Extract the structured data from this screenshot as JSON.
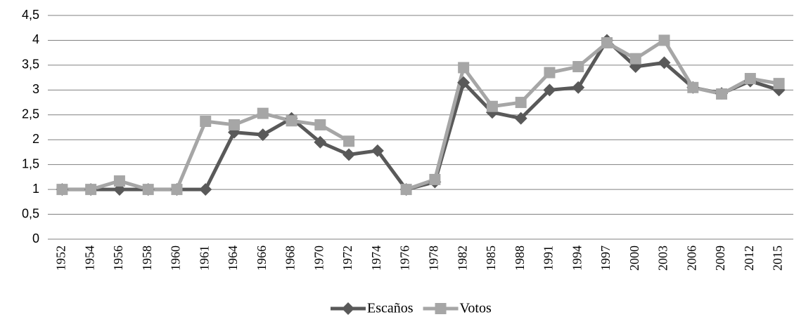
{
  "chart_data": {
    "type": "line",
    "categories": [
      "1952",
      "1954",
      "1956",
      "1958",
      "1960",
      "1961",
      "1964",
      "1966",
      "1968",
      "1970",
      "1972",
      "1974",
      "1976",
      "1978",
      "1982",
      "1985",
      "1988",
      "1991",
      "1994",
      "1997",
      "2000",
      "2003",
      "2006",
      "2009",
      "2012",
      "2015"
    ],
    "series": [
      {
        "name": "Escaños",
        "color": "#595959",
        "marker": "diamond",
        "values": [
          1,
          1,
          1,
          1,
          1,
          1,
          2.15,
          2.1,
          2.43,
          1.95,
          1.7,
          1.78,
          1,
          1.15,
          3.15,
          2.55,
          2.43,
          3.0,
          3.05,
          4.0,
          3.47,
          3.55,
          3.05,
          2.93,
          3.18,
          3.0
        ]
      },
      {
        "name": "Votos",
        "color": "#a6a6a6",
        "marker": "square",
        "values": [
          1,
          1,
          1.17,
          1,
          1,
          2.37,
          2.3,
          2.53,
          2.38,
          2.3,
          1.97,
          null,
          1,
          1.2,
          3.45,
          2.67,
          2.75,
          3.35,
          3.47,
          3.95,
          3.63,
          4.0,
          3.05,
          2.92,
          3.23,
          3.13
        ]
      }
    ],
    "ylim": [
      0,
      4.5
    ],
    "yticks": [
      0,
      {
        "value": 0.5,
        "label": "0,5"
      },
      1,
      {
        "value": 1.5,
        "label": "1,5"
      },
      2,
      {
        "value": 2.5,
        "label": "2,5"
      },
      3,
      {
        "value": 3.5,
        "label": "3,5"
      },
      4,
      {
        "value": 4.5,
        "label": "4,5"
      }
    ],
    "grid": true,
    "legend": "bottom"
  }
}
